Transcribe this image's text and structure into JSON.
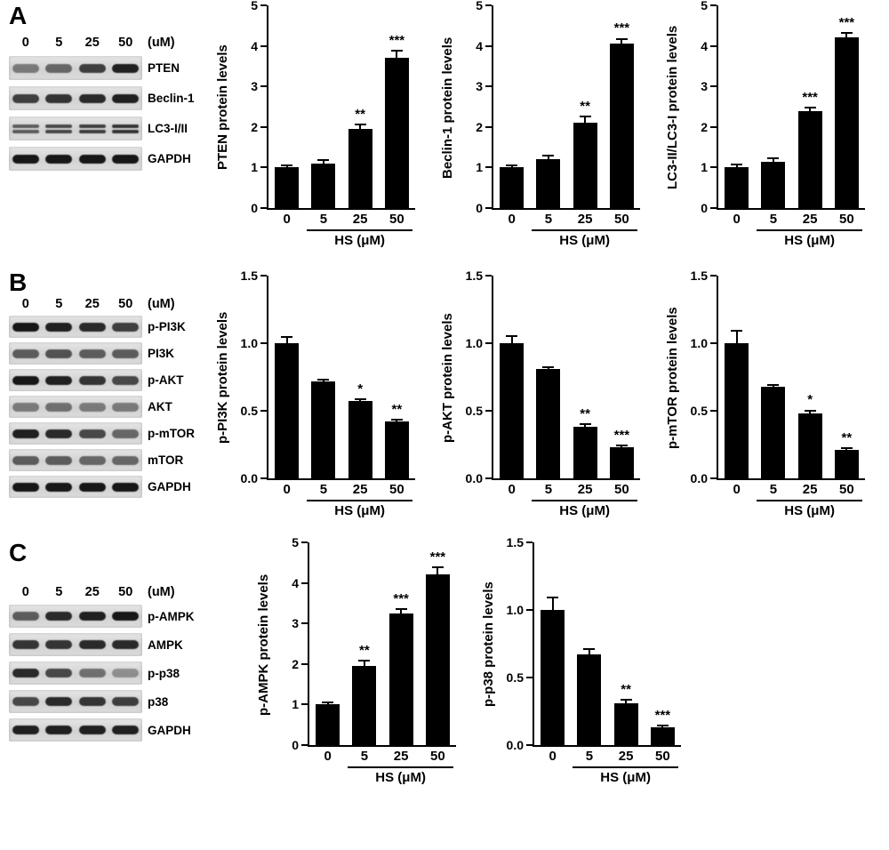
{
  "panels": [
    {
      "label": "A",
      "blot": {
        "doses": [
          "0",
          "5",
          "25",
          "50"
        ],
        "dose_unit": "(uM)",
        "rows": [
          {
            "label": "PTEN",
            "bands": [
              0.45,
              0.55,
              0.75,
              0.9
            ],
            "double": false
          },
          {
            "label": "Beclin-1",
            "bands": [
              0.75,
              0.8,
              0.85,
              0.9
            ],
            "double": false
          },
          {
            "label": "LC3-I/II",
            "bands": [
              0.6,
              0.7,
              0.75,
              0.8
            ],
            "double": true
          },
          {
            "label": "GAPDH",
            "bands": [
              0.95,
              0.95,
              0.95,
              0.95
            ],
            "double": false
          }
        ]
      }
    },
    {
      "label": "B",
      "blot": {
        "doses": [
          "0",
          "5",
          "25",
          "50"
        ],
        "dose_unit": "(uM)",
        "rows": [
          {
            "label": "p-PI3K",
            "bands": [
              0.95,
              0.9,
              0.85,
              0.75
            ],
            "double": false
          },
          {
            "label": "PI3K",
            "bands": [
              0.6,
              0.65,
              0.6,
              0.6
            ],
            "double": false
          },
          {
            "label": "p-AKT",
            "bands": [
              0.95,
              0.9,
              0.8,
              0.7
            ],
            "double": false
          },
          {
            "label": "AKT",
            "bands": [
              0.45,
              0.5,
              0.45,
              0.45
            ],
            "double": false
          },
          {
            "label": "p-mTOR",
            "bands": [
              0.9,
              0.85,
              0.7,
              0.55
            ],
            "double": false
          },
          {
            "label": "mTOR",
            "bands": [
              0.6,
              0.6,
              0.55,
              0.55
            ],
            "double": false
          },
          {
            "label": "GAPDH",
            "bands": [
              0.95,
              0.95,
              0.95,
              0.95
            ],
            "double": false
          }
        ]
      }
    },
    {
      "label": "C",
      "blot": {
        "doses": [
          "0",
          "5",
          "25",
          "50"
        ],
        "dose_unit": "(uM)",
        "rows": [
          {
            "label": "p-AMPK",
            "bands": [
              0.6,
              0.85,
              0.9,
              0.95
            ],
            "double": false
          },
          {
            "label": "AMPK",
            "bands": [
              0.8,
              0.8,
              0.85,
              0.85
            ],
            "double": false
          },
          {
            "label": "p-p38",
            "bands": [
              0.85,
              0.7,
              0.5,
              0.35
            ],
            "double": false
          },
          {
            "label": "p38",
            "bands": [
              0.7,
              0.85,
              0.8,
              0.75
            ],
            "double": false
          },
          {
            "label": "GAPDH",
            "bands": [
              0.9,
              0.9,
              0.9,
              0.9
            ],
            "double": false
          }
        ]
      }
    }
  ],
  "chart_data": [
    {
      "type": "bar",
      "panel": "A",
      "ylabel": "PTEN protein levels",
      "xlabel": "HS (μM)",
      "categories": [
        "0",
        "5",
        "25",
        "50"
      ],
      "values": [
        1.0,
        1.1,
        1.95,
        3.7
      ],
      "errors": [
        0.05,
        0.1,
        0.13,
        0.2
      ],
      "sig": [
        "",
        "",
        "**",
        "***"
      ],
      "ylim": [
        0,
        5
      ],
      "ytick_step": 1,
      "ytick_decimals": 0,
      "grid": false,
      "bar_color": "#000000"
    },
    {
      "type": "bar",
      "panel": "A",
      "ylabel": "Beclin-1 protein levels",
      "xlabel": "HS (μM)",
      "categories": [
        "0",
        "5",
        "25",
        "50"
      ],
      "values": [
        1.0,
        1.2,
        2.1,
        4.05
      ],
      "errors": [
        0.06,
        0.12,
        0.18,
        0.15
      ],
      "sig": [
        "",
        "",
        "**",
        "***"
      ],
      "ylim": [
        0,
        5
      ],
      "ytick_step": 1,
      "ytick_decimals": 0,
      "grid": false,
      "bar_color": "#000000"
    },
    {
      "type": "bar",
      "panel": "A",
      "ylabel": "LC3-II/LC3-I protein levels",
      "xlabel": "HS (μM)",
      "categories": [
        "0",
        "5",
        "25",
        "50"
      ],
      "values": [
        1.0,
        1.15,
        2.4,
        4.2
      ],
      "errors": [
        0.1,
        0.1,
        0.1,
        0.15
      ],
      "sig": [
        "",
        "",
        "***",
        "***"
      ],
      "ylim": [
        0,
        5
      ],
      "ytick_step": 1,
      "ytick_decimals": 0,
      "grid": false,
      "bar_color": "#000000"
    },
    {
      "type": "bar",
      "panel": "B",
      "ylabel": "p-PI3K protein levels",
      "xlabel": "HS (μM)",
      "categories": [
        "0",
        "5",
        "25",
        "50"
      ],
      "values": [
        1.0,
        0.72,
        0.57,
        0.42
      ],
      "errors": [
        0.05,
        0.02,
        0.02,
        0.02
      ],
      "sig": [
        "",
        "",
        "*",
        "**"
      ],
      "ylim": [
        0,
        1.5
      ],
      "ytick_step": 0.5,
      "ytick_decimals": 1,
      "grid": false,
      "bar_color": "#000000"
    },
    {
      "type": "bar",
      "panel": "B",
      "ylabel": "p-AKT protein levels",
      "xlabel": "HS (μM)",
      "categories": [
        "0",
        "5",
        "25",
        "50"
      ],
      "values": [
        1.0,
        0.81,
        0.38,
        0.23
      ],
      "errors": [
        0.06,
        0.02,
        0.03,
        0.02
      ],
      "sig": [
        "",
        "",
        "**",
        "***"
      ],
      "ylim": [
        0,
        1.5
      ],
      "ytick_step": 0.5,
      "ytick_decimals": 1,
      "grid": false,
      "bar_color": "#000000"
    },
    {
      "type": "bar",
      "panel": "B",
      "ylabel": "p-mTOR protein levels",
      "xlabel": "HS (μM)",
      "categories": [
        "0",
        "5",
        "25",
        "50"
      ],
      "values": [
        1.0,
        0.68,
        0.48,
        0.21
      ],
      "errors": [
        0.1,
        0.02,
        0.03,
        0.02
      ],
      "sig": [
        "",
        "",
        "*",
        "**"
      ],
      "ylim": [
        0,
        1.5
      ],
      "ytick_step": 0.5,
      "ytick_decimals": 1,
      "grid": false,
      "bar_color": "#000000"
    },
    {
      "type": "bar",
      "panel": "C",
      "ylabel": "p-AMPK protein levels",
      "xlabel": "HS (μM)",
      "categories": [
        "0",
        "5",
        "25",
        "50"
      ],
      "values": [
        1.0,
        1.95,
        3.25,
        4.2
      ],
      "errors": [
        0.08,
        0.15,
        0.12,
        0.2
      ],
      "sig": [
        "",
        "**",
        "***",
        "***"
      ],
      "ylim": [
        0,
        5
      ],
      "ytick_step": 1,
      "ytick_decimals": 0,
      "grid": false,
      "bar_color": "#000000"
    },
    {
      "type": "bar",
      "panel": "C",
      "ylabel": "p-p38 protein levels",
      "xlabel": "HS (μM)",
      "categories": [
        "0",
        "5",
        "25",
        "50"
      ],
      "values": [
        1.0,
        0.67,
        0.31,
        0.13
      ],
      "errors": [
        0.1,
        0.05,
        0.03,
        0.02
      ],
      "sig": [
        "",
        "",
        "**",
        "***"
      ],
      "ylim": [
        0,
        1.5
      ],
      "ytick_step": 0.5,
      "ytick_decimals": 1,
      "grid": false,
      "bar_color": "#000000"
    }
  ]
}
